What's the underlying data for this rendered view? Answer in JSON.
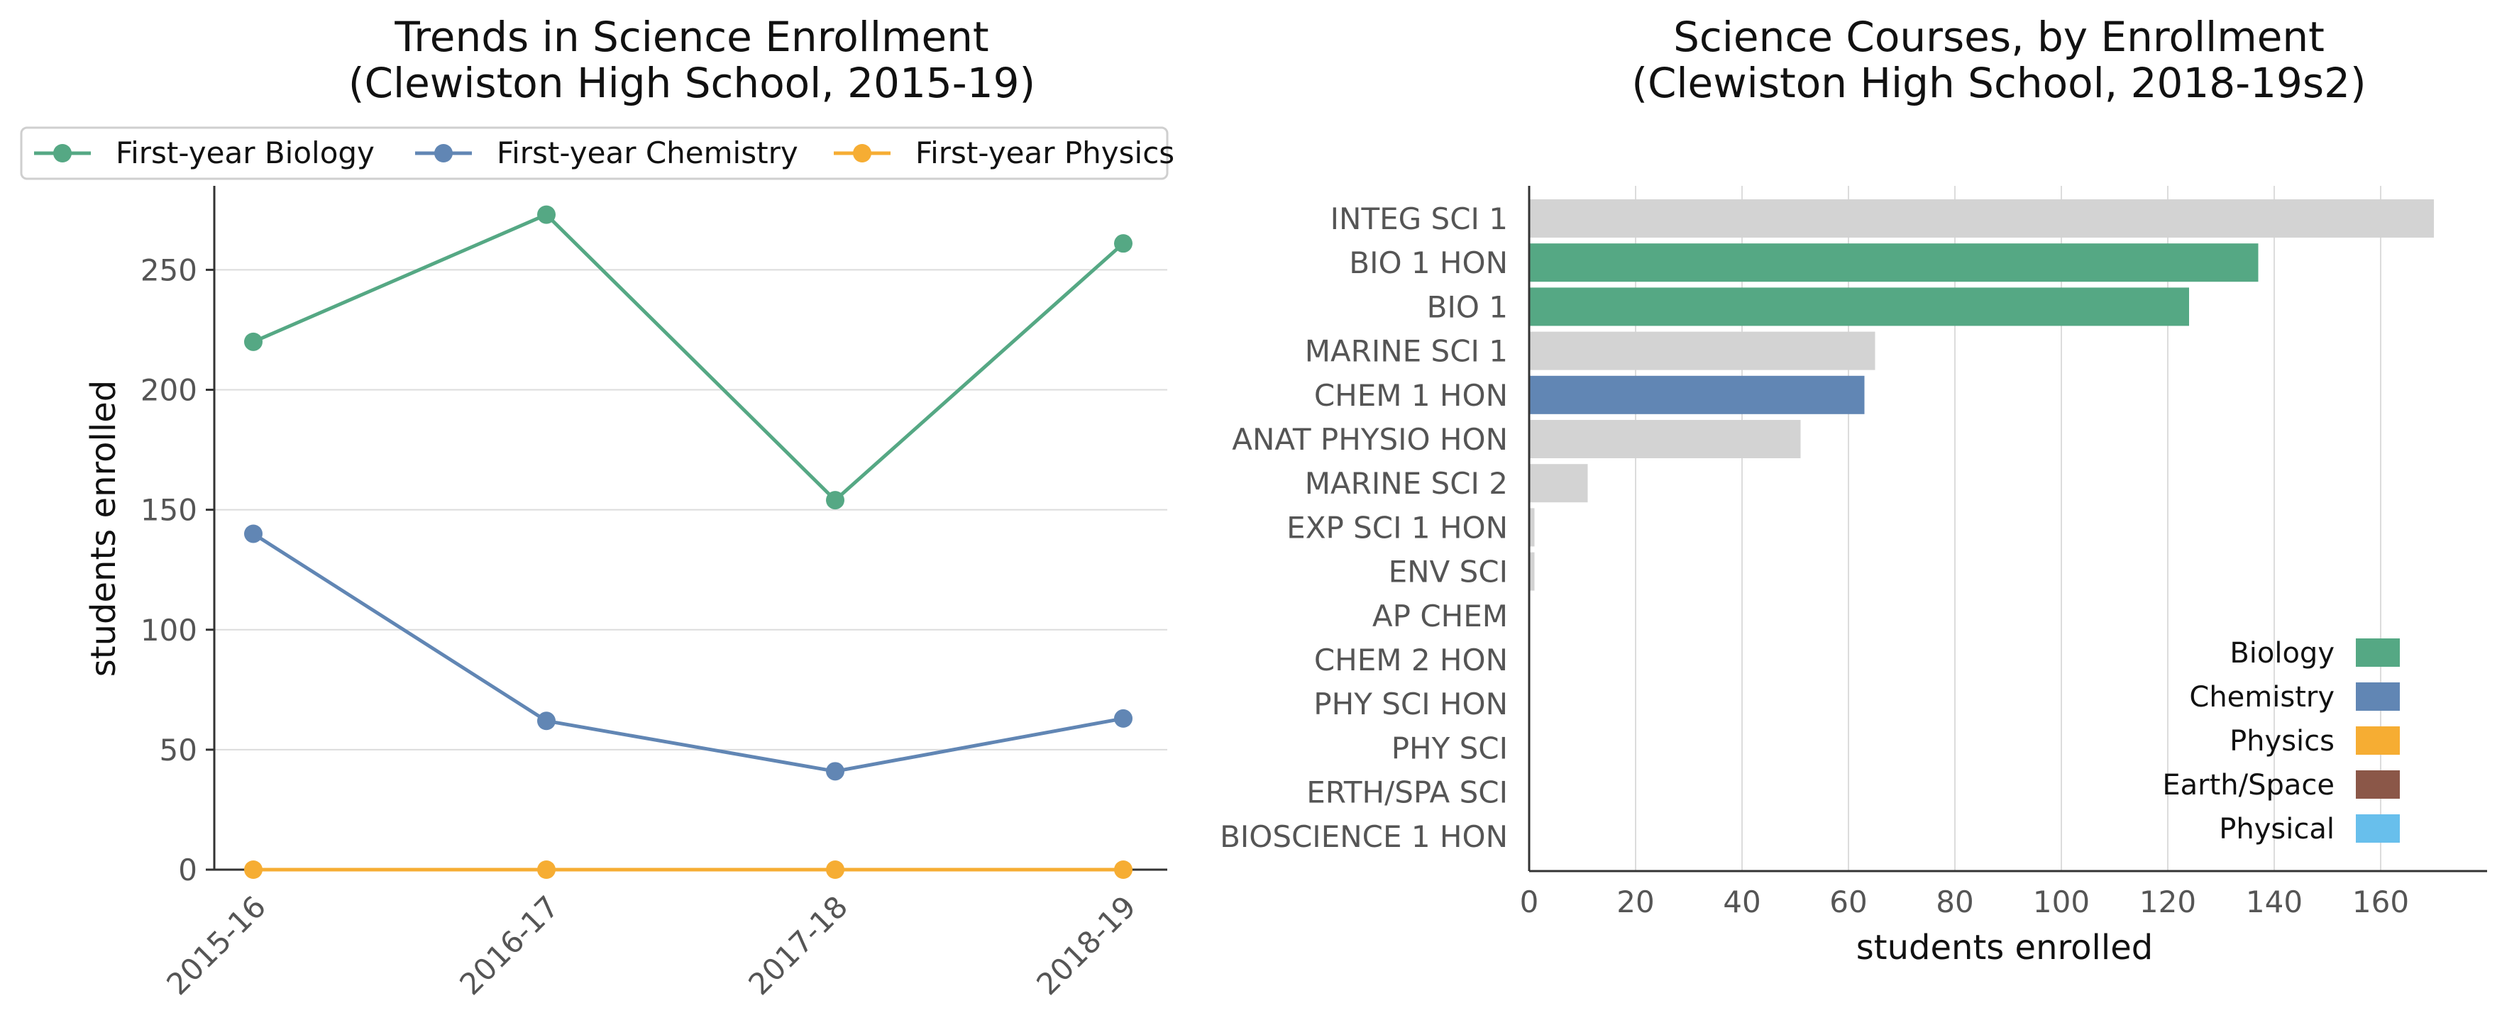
{
  "chart_data": [
    {
      "type": "line",
      "title_line1": "Trends in Science Enrollment",
      "title_line2": "(Clewiston High School, 2015-19)",
      "xlabel": "",
      "ylabel": "students enrolled",
      "categories": [
        "2015-16",
        "2016-17",
        "2017-18",
        "2018-19"
      ],
      "ylim": [
        0,
        285
      ],
      "yticks": [
        0,
        50,
        100,
        150,
        200,
        250
      ],
      "grid": "horizontal",
      "legend_position": "top",
      "series": [
        {
          "name": "First-year Biology",
          "color": "#55a884",
          "values": [
            220,
            273,
            154,
            261
          ]
        },
        {
          "name": "First-year Chemistry",
          "color": "#6186b4",
          "values": [
            140,
            62,
            41,
            63
          ]
        },
        {
          "name": "First-year Physics",
          "color": "#f6ad33",
          "values": [
            0,
            0,
            0,
            0
          ]
        }
      ]
    },
    {
      "type": "bar",
      "orientation": "horizontal",
      "title_line1": "Science Courses, by Enrollment",
      "title_line2": "(Clewiston High School, 2018-19s2)",
      "xlabel": "students enrolled",
      "ylabel": "",
      "xlim": [
        0,
        180
      ],
      "xticks": [
        0,
        20,
        40,
        60,
        80,
        100,
        120,
        140,
        160
      ],
      "grid": "vertical",
      "legend_position": "bottom-right",
      "categories": [
        "INTEG SCI 1",
        "BIO 1 HON",
        "BIO 1",
        "MARINE SCI 1",
        "CHEM 1 HON",
        "ANAT PHYSIO HON",
        "MARINE SCI 2",
        "EXP SCI 1 HON",
        "ENV SCI",
        "AP CHEM",
        "CHEM 2 HON",
        "PHY SCI HON",
        "PHY SCI",
        "ERTH/SPA SCI",
        "BIOSCIENCE 1 HON"
      ],
      "values": [
        170,
        137,
        124,
        65,
        63,
        51,
        11,
        1,
        1,
        0,
        0,
        0,
        0,
        0,
        0
      ],
      "bar_colors": [
        "#d3d3d3",
        "#55a884",
        "#55a884",
        "#d3d3d3",
        "#6186b4",
        "#d3d3d3",
        "#d3d3d3",
        "#d3d3d3",
        "#d3d3d3",
        "#d3d3d3",
        "#d3d3d3",
        "#d3d3d3",
        "#d3d3d3",
        "#d3d3d3",
        "#d3d3d3"
      ],
      "legend": [
        {
          "name": "Biology",
          "color": "#55a884"
        },
        {
          "name": "Chemistry",
          "color": "#6186b4"
        },
        {
          "name": "Physics",
          "color": "#f6ad33"
        },
        {
          "name": "Earth/Space",
          "color": "#8b5748"
        },
        {
          "name": "Physical",
          "color": "#68bfec"
        }
      ]
    }
  ]
}
